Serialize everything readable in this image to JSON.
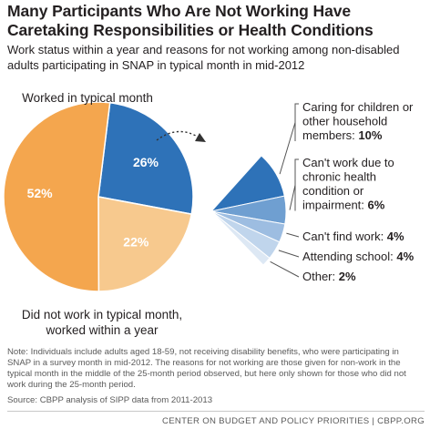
{
  "chart_data": {
    "title": "Many Participants Who Are Not Working Have Caretaking Responsibilities or Health Conditions",
    "subtitle": "Work status within a year and reasons for not working among non-disabled adults participating in SNAP in typical month in mid-2012",
    "pie": {
      "type": "pie",
      "slices": [
        {
          "label": "Worked in typical month",
          "value": 52,
          "value_label": "52%",
          "color": "#f4a64e"
        },
        {
          "label": "Did not work in typical month, worked within a year",
          "value": 22,
          "value_label": "22%",
          "color": "#f7c98e"
        },
        {
          "label": "",
          "value": 26,
          "value_label": "26%",
          "color": "#2e72b8"
        }
      ]
    },
    "breakdown": {
      "type": "pie",
      "slices": [
        {
          "label_lines": [
            "Caring for children or",
            "other household",
            "members: "
          ],
          "value_label": "10%",
          "value": 10,
          "color": "#2e72b8"
        },
        {
          "label_lines": [
            "Can't work due to",
            "chronic health",
            "condition or",
            "impairment: "
          ],
          "value_label": "6%",
          "value": 6,
          "color": "#6f9fd1"
        },
        {
          "label_lines": [
            "Can't find work: "
          ],
          "value_label": "4%",
          "value": 4,
          "color": "#9dbde1"
        },
        {
          "label_lines": [
            "Attending school: "
          ],
          "value_label": "4%",
          "value": 4,
          "color": "#c0d5ec"
        },
        {
          "label_lines": [
            "Other: "
          ],
          "value_label": "2%",
          "value": 2,
          "color": "#dde8f4"
        }
      ]
    }
  },
  "note": "Note: Individuals include adults aged 18-59, not receiving disability benefits, who were participating in SNAP in a survey month in mid-2012. The reasons for not working are those given for non-work in the typical month in the middle of the 25-month period observed, but here only shown for those who did not work during the 25-month period.",
  "source": "Source: CBPP analysis of SIPP data from 2011-2013",
  "footer": "CENTER ON BUDGET AND POLICY PRIORITIES | CBPP.ORG"
}
